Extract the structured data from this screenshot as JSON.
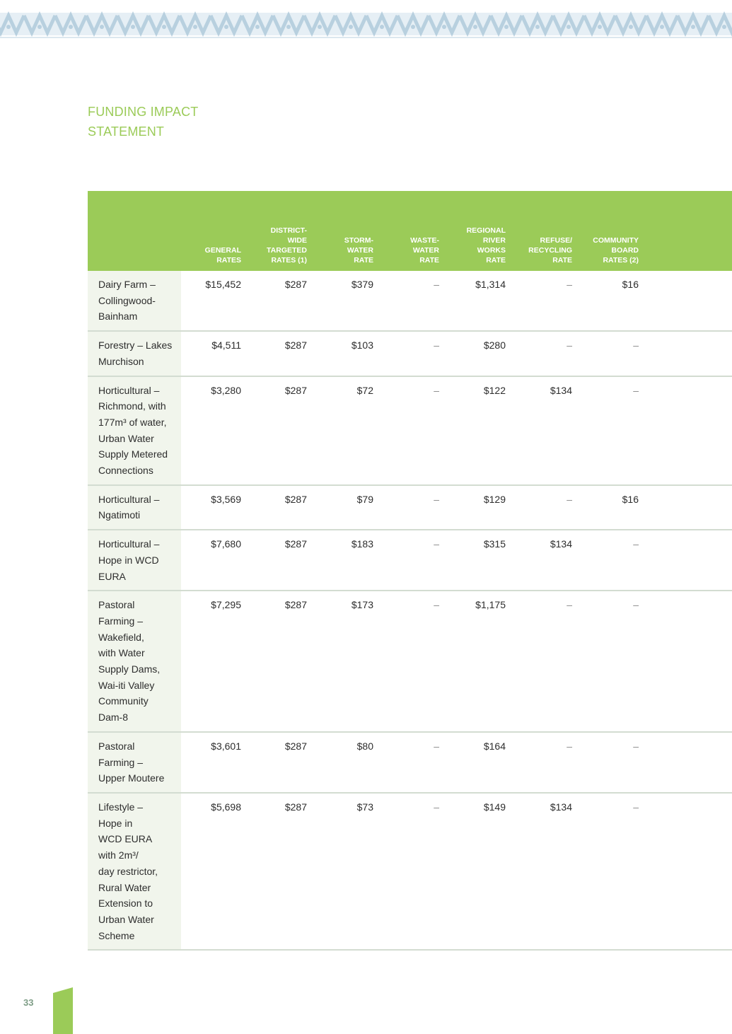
{
  "page": {
    "title_lines": [
      "FUNDING IMPACT",
      "STATEMENT"
    ],
    "page_number": "33"
  },
  "colors": {
    "accent_green": "#9bcb58",
    "title_green": "#9bcb58",
    "row_label_bg": "#f1f5ec",
    "row_border": "#d3dcd1",
    "pattern_blue": "#b8d0df",
    "page_number": "#7e9d86"
  },
  "table": {
    "columns": [
      {
        "key": "general",
        "lines": [
          "GENERAL",
          "RATES"
        ]
      },
      {
        "key": "district",
        "lines": [
          "DISTRICT-",
          "WIDE",
          "TARGETED",
          "RATES (1)"
        ]
      },
      {
        "key": "storm",
        "lines": [
          "STORM-",
          "WATER",
          "RATE"
        ]
      },
      {
        "key": "waste",
        "lines": [
          "WASTE-",
          "WATER",
          "RATE"
        ]
      },
      {
        "key": "river",
        "lines": [
          "REGIONAL",
          "RIVER",
          "WORKS",
          "RATE"
        ]
      },
      {
        "key": "refuse",
        "lines": [
          "REFUSE/",
          "RECYCLING",
          "RATE"
        ]
      },
      {
        "key": "board",
        "lines": [
          "COMMUNITY",
          "BOARD",
          "RATES (2)"
        ]
      }
    ],
    "rows": [
      {
        "label_lines": [
          "Dairy Farm –",
          "Collingwood-",
          "Bainham"
        ],
        "values": [
          "$15,452",
          "$287",
          "$379",
          "–",
          "$1,314",
          "–",
          "$16"
        ]
      },
      {
        "label_lines": [
          "Forestry – Lakes",
          "Murchison"
        ],
        "values": [
          "$4,511",
          "$287",
          "$103",
          "–",
          "$280",
          "–",
          "–"
        ]
      },
      {
        "label_lines": [
          "Horticultural –",
          "Richmond, with",
          "177m³ of water,",
          "Urban Water",
          "Supply Metered",
          "Connections"
        ],
        "values": [
          "$3,280",
          "$287",
          "$72",
          "–",
          "$122",
          "$134",
          "–"
        ]
      },
      {
        "label_lines": [
          "Horticultural –",
          "Ngatimoti"
        ],
        "values": [
          "$3,569",
          "$287",
          "$79",
          "–",
          "$129",
          "–",
          "$16"
        ]
      },
      {
        "label_lines": [
          "Horticultural –",
          "Hope in WCD",
          "EURA"
        ],
        "values": [
          "$7,680",
          "$287",
          "$183",
          "–",
          "$315",
          "$134",
          "–"
        ]
      },
      {
        "label_lines": [
          "Pastoral",
          "Farming –",
          "Wakefield,",
          "with Water",
          "Supply Dams,",
          "Wai-iti Valley",
          "Community",
          "Dam-8"
        ],
        "values": [
          "$7,295",
          "$287",
          "$173",
          "–",
          "$1,175",
          "–",
          "–"
        ]
      },
      {
        "label_lines": [
          "Pastoral",
          "Farming –",
          "Upper Moutere"
        ],
        "values": [
          "$3,601",
          "$287",
          "$80",
          "–",
          "$164",
          "–",
          "–"
        ]
      },
      {
        "label_lines": [
          "Lifestyle –",
          "Hope in",
          "WCD EURA",
          "with 2m³/",
          "day restrictor,",
          "Rural Water",
          "Extension to",
          "Urban Water",
          "Scheme"
        ],
        "values": [
          "$5,698",
          "$287",
          "$73",
          "–",
          "$149",
          "$134",
          "–"
        ]
      }
    ]
  }
}
